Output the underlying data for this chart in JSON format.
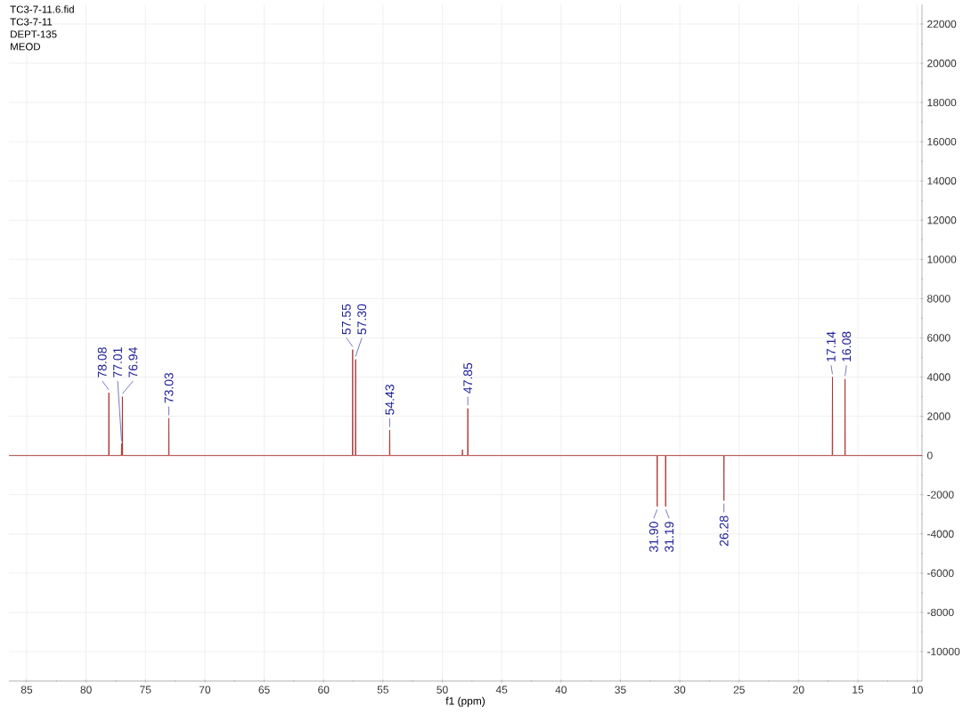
{
  "chart_data": {
    "type": "line",
    "xlabel": "f1 (ppm)",
    "annotations": [
      "TC3-7-11.6.fid",
      "TC3-7-11",
      "DEPT-135",
      "MEOD",
      {
        "text": "78.08",
        "x": 78.08,
        "y": 3200
      },
      {
        "text": "77.01",
        "x": 77.01,
        "y": 600
      },
      {
        "text": "76.94",
        "x": 76.94,
        "y": 3000
      },
      {
        "text": "73.03",
        "x": 73.03,
        "y": 1900
      },
      {
        "text": "57.55",
        "x": 57.55,
        "y": 5400
      },
      {
        "text": "57.30",
        "x": 57.3,
        "y": 4900
      },
      {
        "text": "54.43",
        "x": 54.43,
        "y": 1300
      },
      {
        "text": "47.85",
        "x": 47.85,
        "y": 2400
      },
      {
        "text": "31.90",
        "x": 31.9,
        "y": -2600
      },
      {
        "text": "31.19",
        "x": 31.19,
        "y": -2600
      },
      {
        "text": "26.28",
        "x": 26.28,
        "y": -2300
      },
      {
        "text": "17.14",
        "x": 17.14,
        "y": 4000
      },
      {
        "text": "16.08",
        "x": 16.08,
        "y": 3900
      }
    ],
    "series": [
      {
        "color": "#a83232",
        "x": [
          86.5,
          78.1,
          78.08,
          78.06,
          77.03,
          77.01,
          76.98,
          76.96,
          76.94,
          76.92,
          73.05,
          73.03,
          73.01,
          57.57,
          57.55,
          57.53,
          57.32,
          57.3,
          57.28,
          54.45,
          54.43,
          54.41,
          48.32,
          48.3,
          48.28,
          47.87,
          47.85,
          47.83,
          31.92,
          31.9,
          31.88,
          31.21,
          31.19,
          31.17,
          26.3,
          26.28,
          26.26,
          17.16,
          17.14,
          17.12,
          16.1,
          16.08,
          16.06,
          9.6
        ],
        "values": [
          0,
          0,
          3200,
          0,
          0,
          600,
          0,
          0,
          3000,
          0,
          0,
          1900,
          0,
          0,
          5400,
          0,
          0,
          4900,
          0,
          0,
          1300,
          0,
          0,
          300,
          0,
          0,
          2400,
          0,
          0,
          -2600,
          0,
          0,
          -2600,
          0,
          0,
          -2300,
          0,
          0,
          4000,
          0,
          0,
          3900,
          0,
          0
        ]
      }
    ],
    "xlim": [
      86.5,
      9.6
    ],
    "xticks": [
      85,
      80,
      75,
      70,
      65,
      60,
      55,
      50,
      45,
      40,
      35,
      30,
      25,
      20,
      15,
      10
    ],
    "ylim": [
      -11500,
      23000
    ],
    "yticks": [
      -10000,
      -8000,
      -6000,
      -4000,
      -2000,
      0,
      2000,
      4000,
      6000,
      8000,
      10000,
      12000,
      14000,
      16000,
      18000,
      20000,
      22000
    ],
    "grid": true
  }
}
